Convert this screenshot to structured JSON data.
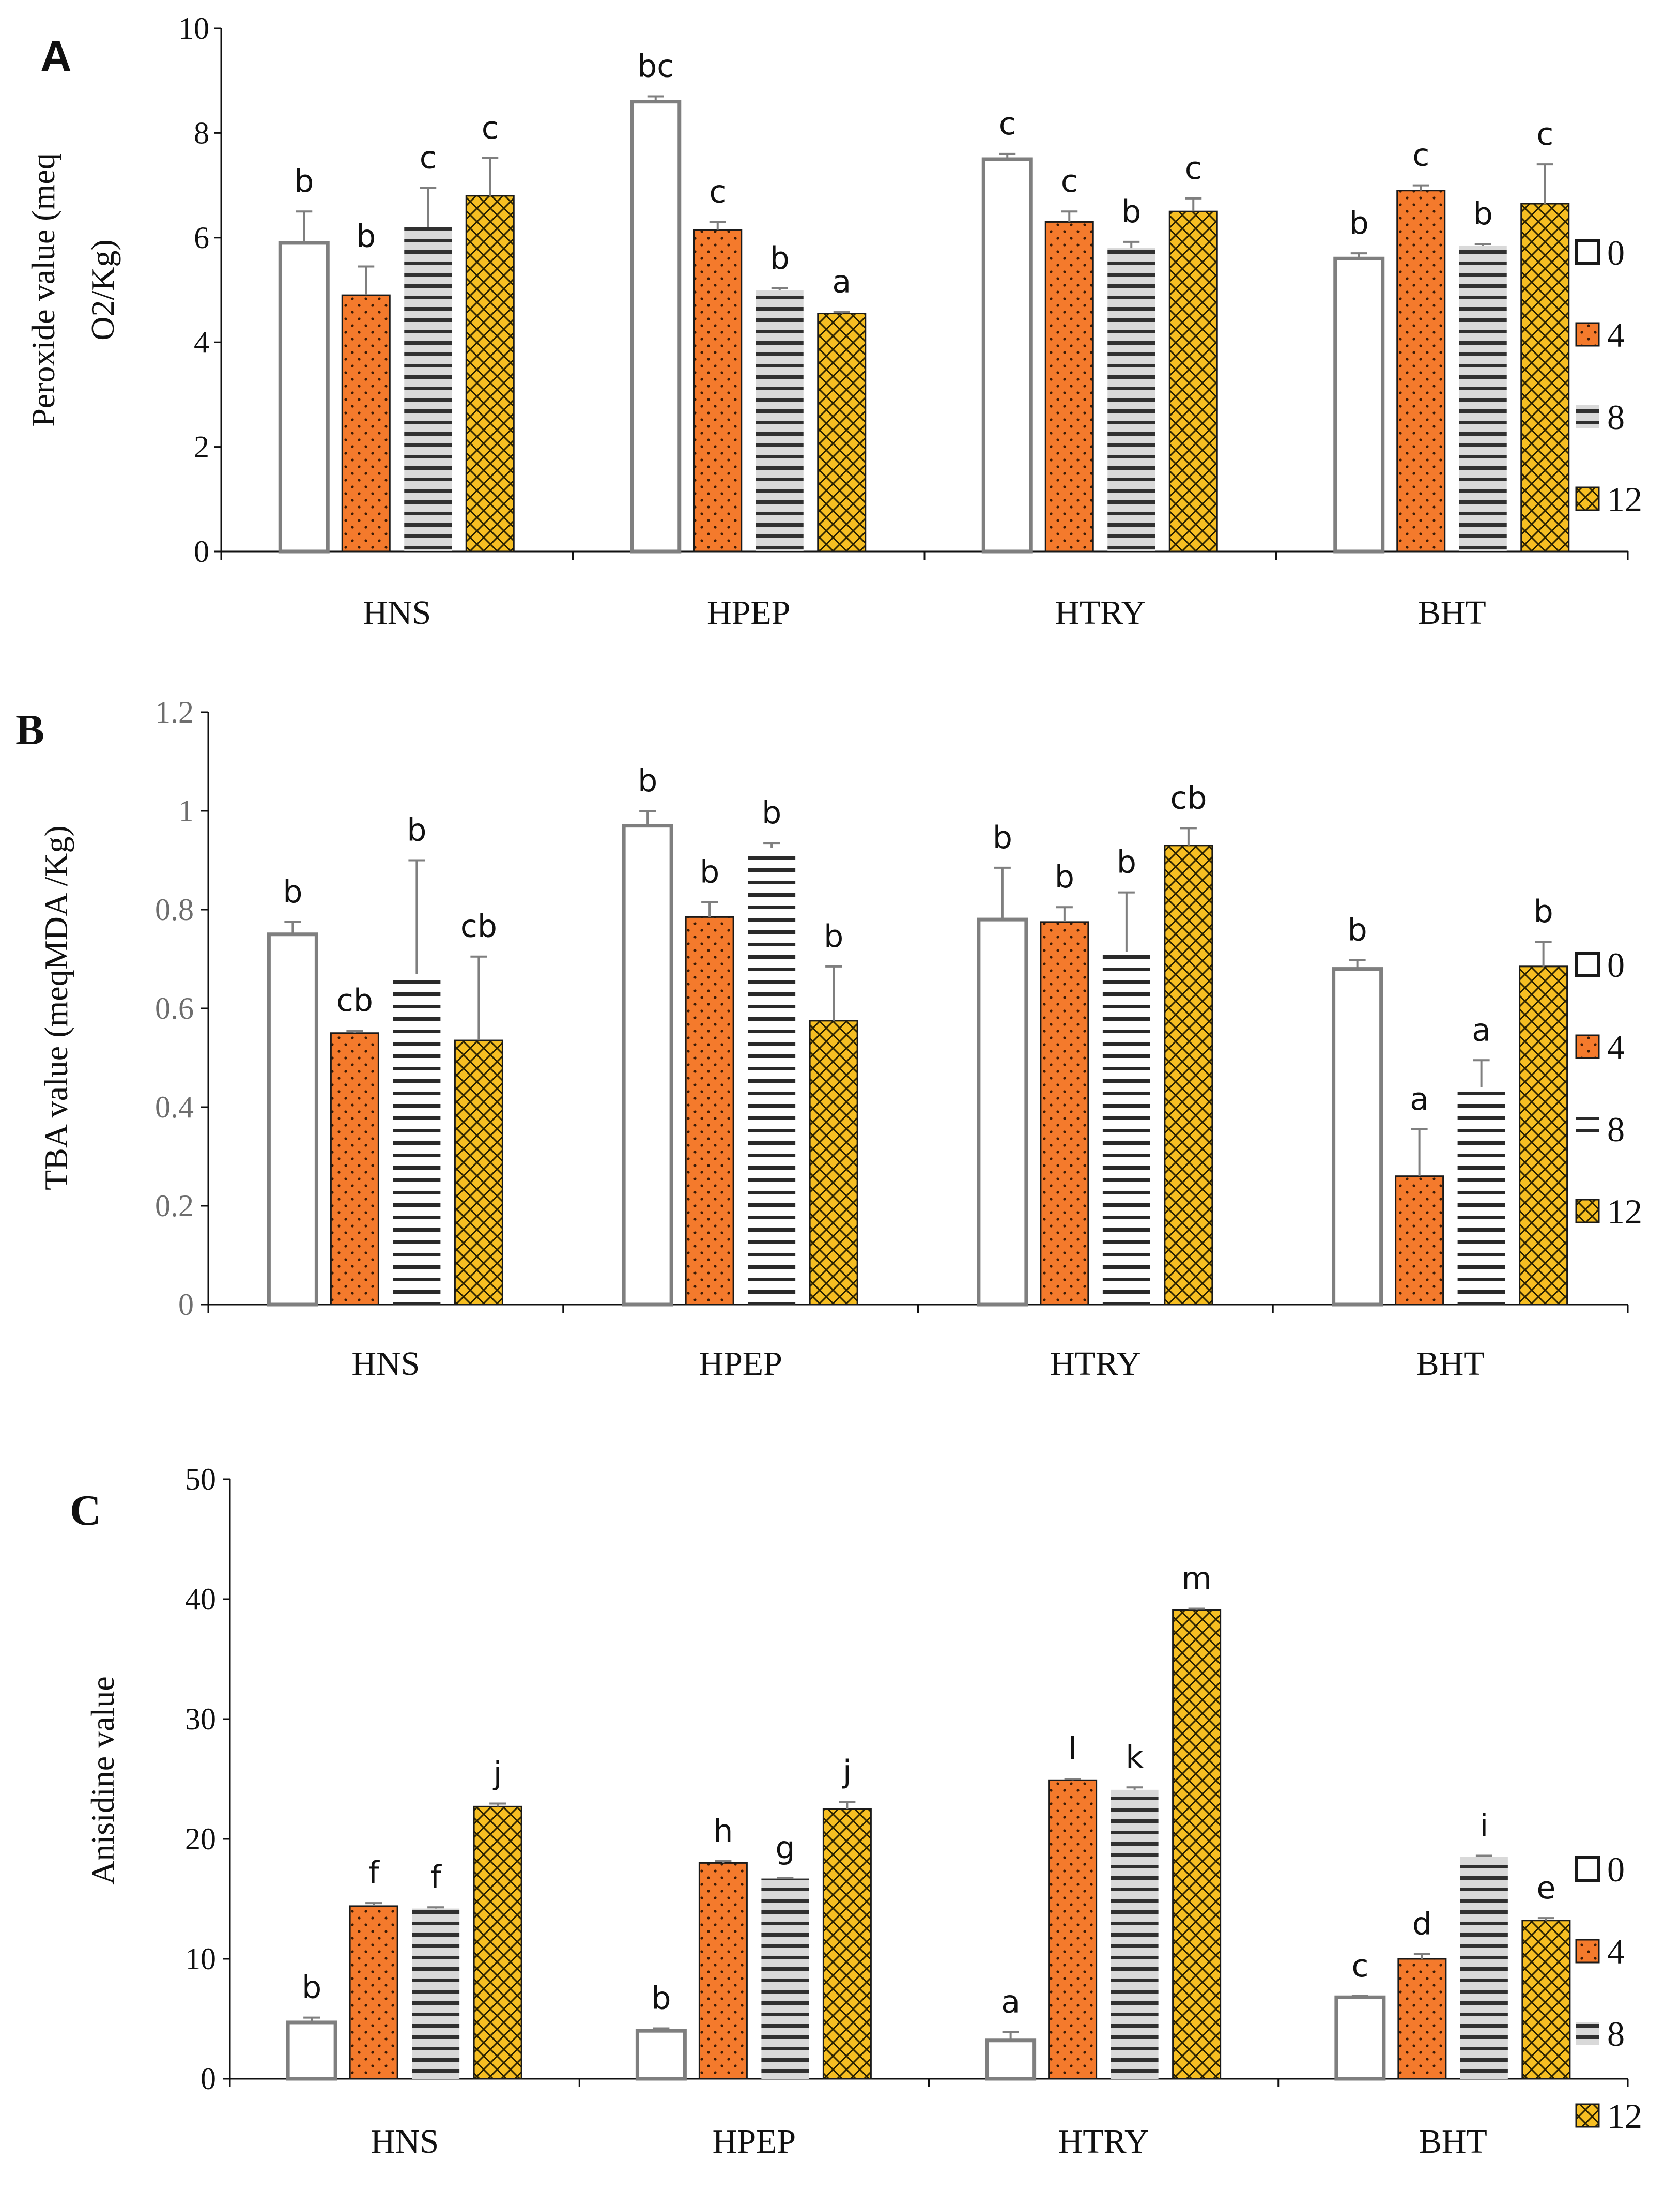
{
  "colors": {
    "orange": "#f47a2c",
    "gold": "#f6be22",
    "grey_border": "#7f7f7f",
    "dark": "#222222"
  },
  "chart_data": [
    {
      "type": "bar",
      "panel": "A",
      "ylabel": "Peroxide value (meq O2/Kg)",
      "ylabel_lines": [
        "Peroxide value (meq",
        "O2/Kg)"
      ],
      "ylim": [
        0,
        10
      ],
      "yticks": [
        "0",
        "2",
        "4",
        "6",
        "8",
        "10"
      ],
      "categories": [
        "HNS",
        "HPEP",
        "HTRY",
        "BHT"
      ],
      "legend": [
        "0",
        "4",
        "8",
        "12"
      ],
      "series": [
        {
          "name": "0",
          "values": [
            5.9,
            8.6,
            7.5,
            5.6
          ],
          "errors": [
            0.6,
            0.1,
            0.1,
            0.1
          ],
          "letters": [
            "b",
            "bc",
            "c",
            "b"
          ]
        },
        {
          "name": "4",
          "values": [
            4.9,
            6.15,
            6.3,
            6.9
          ],
          "errors": [
            0.55,
            0.15,
            0.2,
            0.1
          ],
          "letters": [
            "b",
            "c",
            "c",
            "c"
          ]
        },
        {
          "name": "8",
          "values": [
            6.2,
            5.0,
            5.8,
            5.85
          ],
          "errors": [
            0.75,
            0.03,
            0.12,
            0.03
          ],
          "letters": [
            "c",
            "b",
            "b",
            "b"
          ]
        },
        {
          "name": "12",
          "values": [
            6.8,
            4.55,
            6.5,
            6.65
          ],
          "errors": [
            0.72,
            0.03,
            0.25,
            0.75
          ],
          "letters": [
            "c",
            "a",
            "c",
            "c"
          ]
        }
      ]
    },
    {
      "type": "bar",
      "panel": "B",
      "ylabel": "TBA value (meqMDA /Kg)",
      "ylabel_lines": [
        "TBA value (meqMDA /Kg)"
      ],
      "ylim": [
        0,
        1.2
      ],
      "yticks": [
        "0",
        "0.2",
        "0.4",
        "0.6",
        "0.8",
        "1",
        "1.2"
      ],
      "categories": [
        "HNS",
        "HPEP",
        "HTRY",
        "BHT"
      ],
      "legend": [
        "0",
        "4",
        "8",
        "12"
      ],
      "series": [
        {
          "name": "0",
          "values": [
            0.75,
            0.97,
            0.78,
            0.68
          ],
          "errors": [
            0.025,
            0.03,
            0.105,
            0.018
          ],
          "letters": [
            "b",
            "b",
            "b",
            "b"
          ]
        },
        {
          "name": "4",
          "values": [
            0.55,
            0.785,
            0.775,
            0.26
          ],
          "errors": [
            0.005,
            0.03,
            0.03,
            0.095
          ],
          "letters": [
            "cb",
            "b",
            "b",
            "a"
          ]
        },
        {
          "name": "8",
          "values": [
            0.67,
            0.925,
            0.715,
            0.44
          ],
          "errors": [
            0.23,
            0.01,
            0.12,
            0.055
          ],
          "letters": [
            "b",
            "b",
            "b",
            "a"
          ]
        },
        {
          "name": "12",
          "values": [
            0.535,
            0.575,
            0.93,
            0.685
          ],
          "errors": [
            0.17,
            0.11,
            0.035,
            0.05
          ],
          "letters": [
            "cb",
            "b",
            "cb",
            "b"
          ]
        }
      ]
    },
    {
      "type": "bar",
      "panel": "C",
      "ylabel": "Anisidine value",
      "ylabel_lines": [
        "Anisidine value"
      ],
      "ylim": [
        0,
        50
      ],
      "yticks": [
        "0",
        "10",
        "20",
        "30",
        "40",
        "50"
      ],
      "categories": [
        "HNS",
        "HPEP",
        "HTRY",
        "BHT"
      ],
      "legend": [
        "0",
        "4",
        "8",
        "12"
      ],
      "series": [
        {
          "name": "0",
          "values": [
            4.7,
            4.0,
            3.2,
            6.8
          ],
          "errors": [
            0.4,
            0.2,
            0.7,
            0.1
          ],
          "letters": [
            "b",
            "b",
            "a",
            "c"
          ]
        },
        {
          "name": "4",
          "values": [
            14.4,
            18.0,
            24.9,
            10.0
          ],
          "errors": [
            0.25,
            0.15,
            0.1,
            0.4
          ],
          "letters": [
            "f",
            "h",
            "l",
            "d"
          ]
        },
        {
          "name": "8",
          "values": [
            14.2,
            16.7,
            24.1,
            18.5
          ],
          "errors": [
            0.1,
            0.05,
            0.2,
            0.1
          ],
          "letters": [
            "f",
            "g",
            "k",
            "i"
          ]
        },
        {
          "name": "12",
          "values": [
            22.7,
            22.5,
            39.1,
            13.2
          ],
          "errors": [
            0.25,
            0.6,
            0.1,
            0.2
          ],
          "letters": [
            "j",
            "j",
            "m",
            "e"
          ]
        }
      ]
    }
  ]
}
